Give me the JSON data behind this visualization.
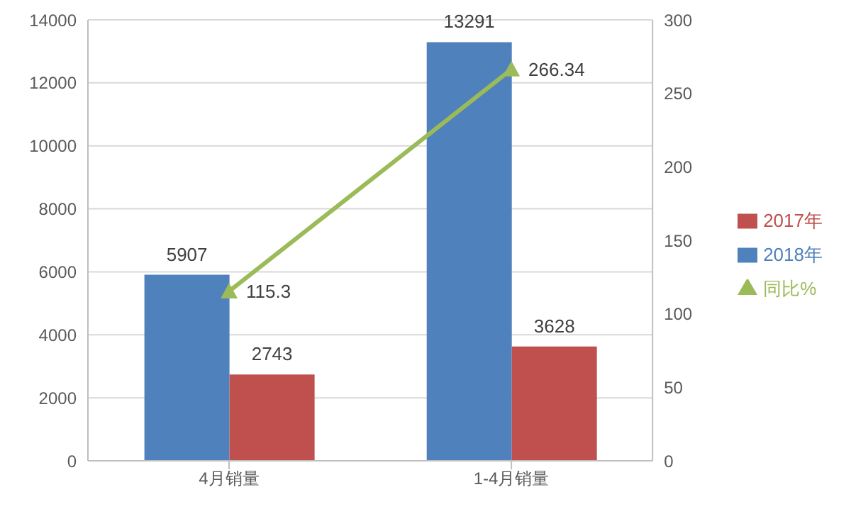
{
  "chart_data": {
    "type": "bar",
    "categories": [
      "4月销量",
      "1-4月销量"
    ],
    "series": [
      {
        "name": "2018年",
        "color": "#4f81bd",
        "values": [
          5907,
          13291
        ]
      },
      {
        "name": "2017年",
        "color": "#c0504d",
        "values": [
          2743,
          3628
        ]
      },
      {
        "name": "同比%",
        "color": "#9bbb59",
        "values": [
          115.3,
          266.34
        ],
        "type": "line",
        "axis": "y2",
        "marker": "triangle"
      }
    ],
    "ylim": [
      0,
      14000
    ],
    "yticks": [
      0,
      2000,
      4000,
      6000,
      8000,
      10000,
      12000,
      14000
    ],
    "y2lim": [
      0,
      300
    ],
    "y2ticks": [
      0,
      50,
      100,
      150,
      200,
      250,
      300
    ],
    "grid": "y",
    "legend": "right",
    "data_labels": true
  }
}
